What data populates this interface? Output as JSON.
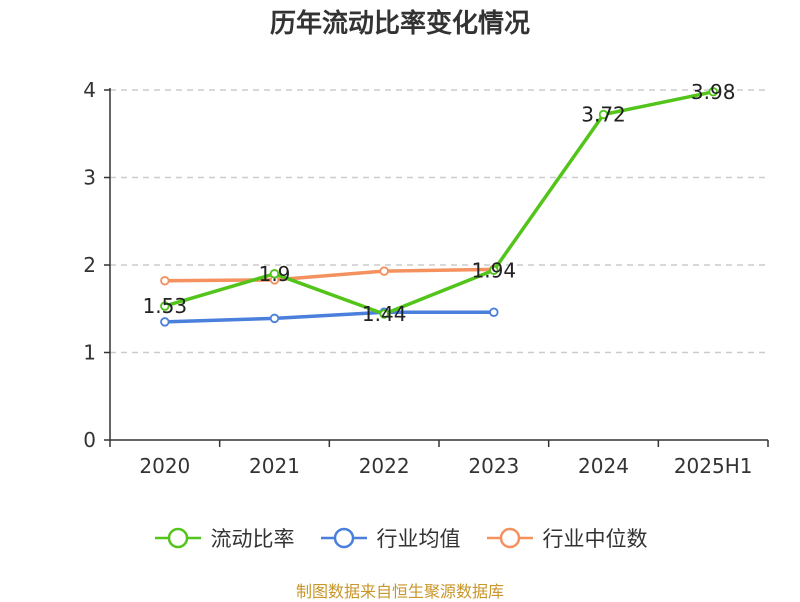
{
  "title": "历年流动比率变化情况",
  "source_note": "制图数据来自恒生聚源数据库",
  "chart_data": {
    "type": "line",
    "title": "历年流动比率变化情况",
    "categories": [
      "2020",
      "2021",
      "2022",
      "2023",
      "2024",
      "2025H1"
    ],
    "ylim": [
      0,
      4
    ],
    "yticks": [
      "0",
      "1",
      "2",
      "3",
      "4"
    ],
    "grid": true,
    "legend_position": "bottom",
    "series": [
      {
        "name": "流动比率",
        "color": "#52c41a",
        "values": [
          1.53,
          1.9,
          1.44,
          1.94,
          3.72,
          3.98
        ],
        "labels": [
          "1.53",
          "1.9",
          "1.44",
          "1.94",
          "3.72",
          "3.98"
        ]
      },
      {
        "name": "行业均值",
        "color": "#4a7fdc",
        "values": [
          1.35,
          1.39,
          1.46,
          1.46,
          null,
          null
        ]
      },
      {
        "name": "行业中位数",
        "color": "#f4915f",
        "values": [
          1.82,
          1.83,
          1.93,
          1.95,
          null,
          null
        ]
      }
    ]
  }
}
